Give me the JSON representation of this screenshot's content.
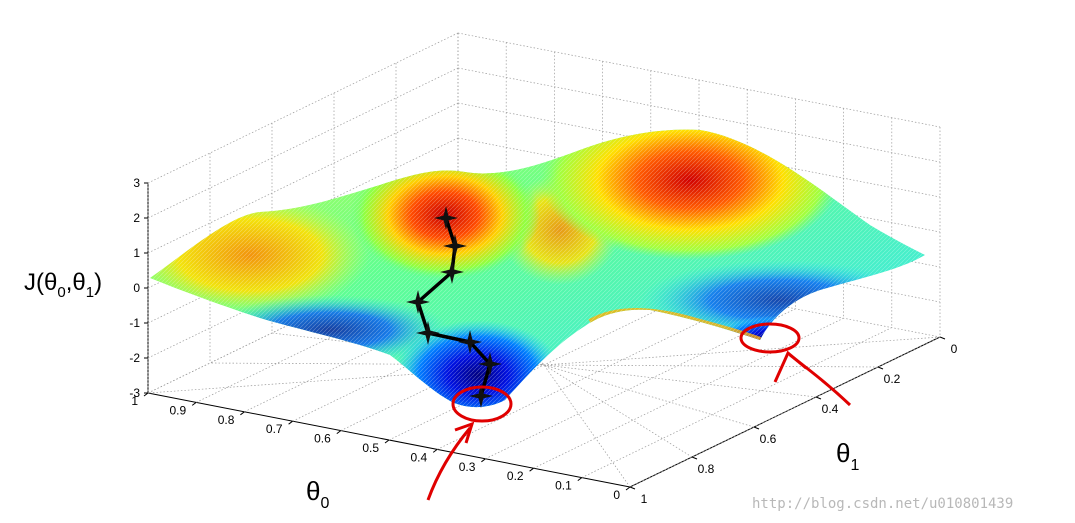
{
  "chart_data": {
    "type": "surface",
    "title": "",
    "zlabel": {
      "base": "J(",
      "a": "θ",
      "a_sub": "0",
      "sep": ",",
      "b": "θ",
      "b_sub": "1",
      "close": ")"
    },
    "xlabel": {
      "base": "θ",
      "sub": "0"
    },
    "ylabel": {
      "base": "θ",
      "sub": "1"
    },
    "x_range": [
      0,
      1
    ],
    "y_range": [
      0,
      1
    ],
    "z_range": [
      -3,
      3
    ],
    "theta0_ticks": [
      "1",
      "0.9",
      "0.8",
      "0.7",
      "0.6",
      "0.5",
      "0.4",
      "0.3",
      "0.2",
      "0.1",
      "0"
    ],
    "theta1_ticks": [
      "0",
      "0.2",
      "0.4",
      "0.6",
      "0.8",
      "1"
    ],
    "z_ticks": [
      "3",
      "2",
      "1",
      "0",
      "-1",
      "-2",
      "-3"
    ],
    "grid": true,
    "colormap": "jet",
    "path_points": 8,
    "annotations": {
      "circles": 2,
      "arrows": 2,
      "color": "#e00000"
    },
    "watermark": "http://blog.csdn.net/u010801439"
  }
}
